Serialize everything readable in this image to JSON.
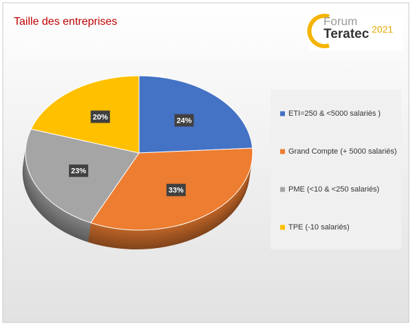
{
  "chart_data": {
    "type": "pie",
    "title": "Taille des entreprises",
    "categories": [
      "ETI=250 & <5000 salariés )",
      "Grand Compte (+ 5000 salariés)",
      "PME (<10 & <250 salariés)",
      "TPE (-10 salariés)"
    ],
    "values": [
      24,
      33,
      23,
      20
    ],
    "value_labels": [
      "24%",
      "33%",
      "23%",
      "20%"
    ],
    "colors": [
      "#4472c4",
      "#ed7d31",
      "#a5a5a5",
      "#ffc000"
    ],
    "legend": "right"
  },
  "logo": {
    "line1": "Forum",
    "line2": "Teratec",
    "year": "2021"
  }
}
